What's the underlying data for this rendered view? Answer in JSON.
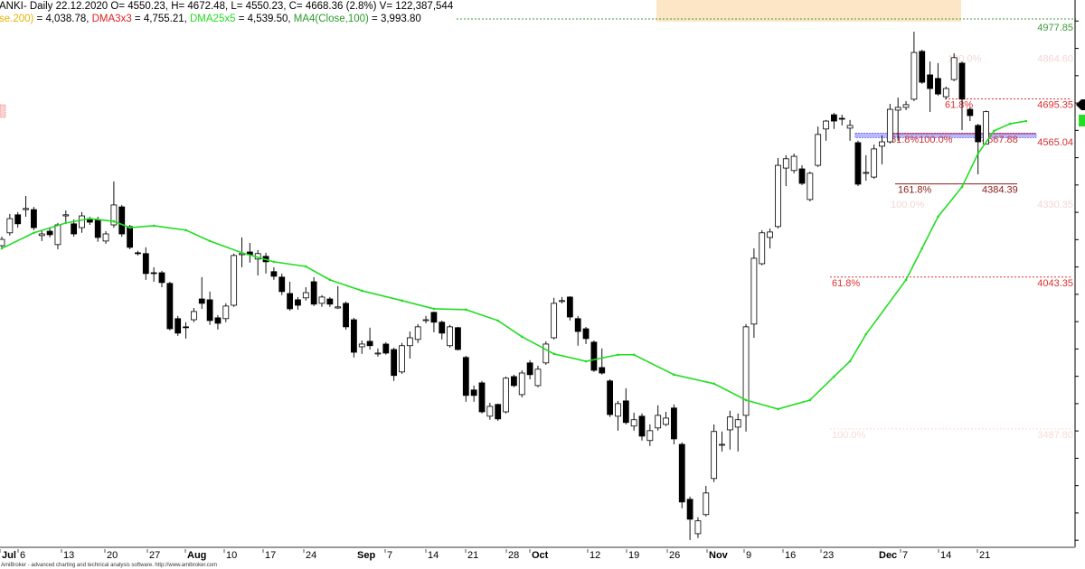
{
  "header": {
    "line1": "ANKI- Daily 22.12.2020 O= 4550.23, H= 4672.48, L= 4550.23, C= 4668.36 (2.8%) V= 122,387,544",
    "ind1_name": "se.200)",
    "ind1_value": " = 4,038.78, ",
    "ind2_name": "DMA3x3",
    "ind2_value": " = 4,755.21, ",
    "ind3_name": "DMA25x5",
    "ind3_value": " = 4,539.50, ",
    "ind4_name": "MA4(Close,100)",
    "ind4_value": " = 3,993.80",
    "colors": {
      "ind1": "#e8b400",
      "ind2": "#e02020",
      "ind3": "#22dd22",
      "ind4": "#2a9a2a"
    }
  },
  "footer": "AmiBroker - advanced charting and technical analysis software. http://www.amibroker.com",
  "chart_data": {
    "type": "candlestick",
    "period": "Daily",
    "last_date": "22.12.2020",
    "y_range": [
      3094,
      5077
    ],
    "grid": false,
    "colors": {
      "up_fill": "#ffffff",
      "down_fill": "#000000",
      "outline": "#000000",
      "ma_line": "#22dd22",
      "highlight_zone": "#fde6c6"
    },
    "x_ticks": [
      {
        "label": "Jul",
        "bold": true
      },
      {
        "label": "6",
        "bold": false
      },
      {
        "label": "13",
        "bold": false
      },
      {
        "label": "20",
        "bold": false
      },
      {
        "label": "27",
        "bold": false
      },
      {
        "label": "Aug",
        "bold": true
      },
      {
        "label": "10",
        "bold": false
      },
      {
        "label": "17",
        "bold": false
      },
      {
        "label": "24",
        "bold": false
      },
      {
        "label": "Sep",
        "bold": true
      },
      {
        "label": "7",
        "bold": false
      },
      {
        "label": "14",
        "bold": false
      },
      {
        "label": "21",
        "bold": false
      },
      {
        "label": "28",
        "bold": false
      },
      {
        "label": "Oct",
        "bold": true
      },
      {
        "label": "12",
        "bold": false
      },
      {
        "label": "19",
        "bold": false
      },
      {
        "label": "26",
        "bold": false
      },
      {
        "label": "Nov",
        "bold": true
      },
      {
        "label": "9",
        "bold": false
      },
      {
        "label": "16",
        "bold": false
      },
      {
        "label": "23",
        "bold": false
      },
      {
        "label": "Dec",
        "bold": true
      },
      {
        "label": "7",
        "bold": false
      },
      {
        "label": "14",
        "bold": false
      },
      {
        "label": "21",
        "bold": false
      }
    ],
    "candles_ohlc": [
      [
        4178,
        4211,
        4168,
        4201
      ],
      [
        4225,
        4294,
        4215,
        4277
      ],
      [
        4291,
        4301,
        4244,
        4258
      ],
      [
        4310,
        4360,
        4284,
        4314
      ],
      [
        4310,
        4320,
        4235,
        4244
      ],
      [
        4215,
        4235,
        4195,
        4221
      ],
      [
        4231,
        4241,
        4208,
        4218
      ],
      [
        4182,
        4261,
        4165,
        4254
      ],
      [
        4287,
        4307,
        4261,
        4291
      ],
      [
        4258,
        4274,
        4211,
        4221
      ],
      [
        4244,
        4301,
        4225,
        4287
      ],
      [
        4277,
        4284,
        4254,
        4264
      ],
      [
        4274,
        4284,
        4192,
        4208
      ],
      [
        4195,
        4231,
        4185,
        4221
      ],
      [
        4254,
        4413,
        4244,
        4327
      ],
      [
        4320,
        4327,
        4211,
        4221
      ],
      [
        4248,
        4254,
        4165,
        4172
      ],
      [
        4152,
        4159,
        4142,
        4149
      ],
      [
        4149,
        4172,
        4053,
        4076
      ],
      [
        4079,
        4099,
        4046,
        4076
      ],
      [
        4079,
        4086,
        4026,
        4043
      ],
      [
        4040,
        4046,
        3868,
        3874
      ],
      [
        3911,
        3921,
        3848,
        3858
      ],
      [
        3881,
        3898,
        3838,
        3878
      ],
      [
        3907,
        3950,
        3898,
        3937
      ],
      [
        3983,
        4063,
        3947,
        3967
      ],
      [
        3980,
        4010,
        3888,
        3904
      ],
      [
        3914,
        3924,
        3871,
        3894
      ],
      [
        3911,
        3967,
        3898,
        3957
      ],
      [
        3960,
        4149,
        3954,
        4142
      ],
      [
        4145,
        4208,
        4099,
        4149
      ],
      [
        4155,
        4188,
        4116,
        4145
      ],
      [
        4129,
        4162,
        4069,
        4149
      ],
      [
        4139,
        4152,
        4076,
        4119
      ],
      [
        4083,
        4099,
        4053,
        4066
      ],
      [
        4063,
        4076,
        3997,
        4010
      ],
      [
        4003,
        4046,
        3940,
        3947
      ],
      [
        3980,
        3990,
        3944,
        3960
      ],
      [
        3987,
        4026,
        3977,
        4006
      ],
      [
        4046,
        4063,
        3957,
        3964
      ],
      [
        3967,
        3997,
        3954,
        3990
      ],
      [
        3983,
        3990,
        3954,
        3964
      ],
      [
        3950,
        4030,
        3947,
        3954
      ],
      [
        3967,
        3974,
        3871,
        3881
      ],
      [
        3907,
        3914,
        3769,
        3788
      ],
      [
        3808,
        3831,
        3782,
        3818
      ],
      [
        3828,
        3878,
        3798,
        3812
      ],
      [
        3782,
        3802,
        3772,
        3785
      ],
      [
        3818,
        3825,
        3779,
        3785
      ],
      [
        3798,
        3805,
        3683,
        3703
      ],
      [
        3716,
        3822,
        3709,
        3812
      ],
      [
        3812,
        3864,
        3765,
        3841
      ],
      [
        3835,
        3891,
        3822,
        3881
      ],
      [
        3904,
        3921,
        3894,
        3907
      ],
      [
        3934,
        3937,
        3861,
        3898
      ],
      [
        3898,
        3904,
        3835,
        3858
      ],
      [
        3812,
        3888,
        3805,
        3881
      ],
      [
        3878,
        3881,
        3795,
        3798
      ],
      [
        3769,
        3775,
        3607,
        3630
      ],
      [
        3650,
        3666,
        3607,
        3630
      ],
      [
        3676,
        3683,
        3564,
        3570
      ],
      [
        3554,
        3603,
        3541,
        3590
      ],
      [
        3597,
        3600,
        3537,
        3544
      ],
      [
        3570,
        3699,
        3564,
        3693
      ],
      [
        3699,
        3706,
        3660,
        3666
      ],
      [
        3633,
        3722,
        3623,
        3712
      ],
      [
        3749,
        3759,
        3689,
        3706
      ],
      [
        3666,
        3739,
        3660,
        3726
      ],
      [
        3749,
        3828,
        3742,
        3818
      ],
      [
        3841,
        3987,
        3835,
        3967
      ],
      [
        3974,
        3990,
        3967,
        3977
      ],
      [
        3990,
        3993,
        3904,
        3917
      ],
      [
        3911,
        3921,
        3812,
        3864
      ],
      [
        3874,
        3881,
        3818,
        3838
      ],
      [
        3825,
        3831,
        3716,
        3722
      ],
      [
        3732,
        3802,
        3706,
        3712
      ],
      [
        3683,
        3689,
        3551,
        3560
      ],
      [
        3554,
        3610,
        3501,
        3600
      ],
      [
        3610,
        3656,
        3524,
        3531
      ],
      [
        3518,
        3567,
        3501,
        3541
      ],
      [
        3554,
        3564,
        3465,
        3481
      ],
      [
        3465,
        3524,
        3445,
        3501
      ],
      [
        3511,
        3594,
        3501,
        3557
      ],
      [
        3524,
        3570,
        3518,
        3547
      ],
      [
        3584,
        3597,
        3451,
        3471
      ],
      [
        3451,
        3458,
        3217,
        3240
      ],
      [
        3250,
        3260,
        3101,
        3177
      ],
      [
        3124,
        3184,
        3108,
        3171
      ],
      [
        3194,
        3299,
        3187,
        3273
      ],
      [
        3326,
        3524,
        3313,
        3498
      ],
      [
        3448,
        3498,
        3425,
        3451
      ],
      [
        3504,
        3574,
        3432,
        3551
      ],
      [
        3514,
        3564,
        3425,
        3541
      ],
      [
        3557,
        3891,
        3498,
        3881
      ],
      [
        3891,
        4168,
        3841,
        4132
      ],
      [
        4112,
        4235,
        4106,
        4225
      ],
      [
        4208,
        4241,
        4168,
        4228
      ],
      [
        4248,
        4499,
        4241,
        4472
      ],
      [
        4462,
        4509,
        4396,
        4496
      ],
      [
        4453,
        4515,
        4443,
        4505
      ],
      [
        4459,
        4472,
        4400,
        4406
      ],
      [
        4347,
        4449,
        4340,
        4443
      ],
      [
        4472,
        4614,
        4466,
        4585
      ],
      [
        4605,
        4638,
        4562,
        4634
      ],
      [
        4657,
        4664,
        4605,
        4634
      ],
      [
        4644,
        4657,
        4618,
        4641
      ],
      [
        4608,
        4638,
        4562,
        4618
      ],
      [
        4555,
        4562,
        4396,
        4403
      ],
      [
        4443,
        4509,
        4416,
        4446
      ],
      [
        4429,
        4548,
        4423,
        4532
      ],
      [
        4542,
        4581,
        4476,
        4558
      ],
      [
        4558,
        4697,
        4552,
        4677
      ],
      [
        4674,
        4720,
        4562,
        4684
      ],
      [
        4684,
        4707,
        4674,
        4694
      ],
      [
        4714,
        4961,
        4707,
        4885
      ],
      [
        4889,
        4895,
        4770,
        4776
      ],
      [
        4803,
        4852,
        4667,
        4753
      ],
      [
        4790,
        4846,
        4727,
        4733
      ],
      [
        4723,
        4760,
        4714,
        4753
      ],
      [
        4786,
        4882,
        4780,
        4866
      ],
      [
        4846,
        4852,
        4601,
        4714
      ],
      [
        4677,
        4684,
        4634,
        4654
      ],
      [
        4618,
        4624,
        4439,
        4558
      ],
      [
        4550.23,
        4672.48,
        4550.23,
        4668.36
      ]
    ],
    "ma_series": {
      "name": "DMA25x5",
      "points_bar_value": [
        [
          0,
          4168
        ],
        [
          4,
          4225
        ],
        [
          8,
          4261
        ],
        [
          11,
          4277
        ],
        [
          14,
          4267
        ],
        [
          16,
          4244
        ],
        [
          19,
          4251
        ],
        [
          23,
          4235
        ],
        [
          26,
          4195
        ],
        [
          30,
          4152
        ],
        [
          34,
          4119
        ],
        [
          38,
          4102
        ],
        [
          41,
          4053
        ],
        [
          45,
          4013
        ],
        [
          50,
          3977
        ],
        [
          54,
          3947
        ],
        [
          58,
          3944
        ],
        [
          62,
          3904
        ],
        [
          65,
          3845
        ],
        [
          69,
          3782
        ],
        [
          73,
          3755
        ],
        [
          77,
          3779
        ],
        [
          79,
          3779
        ],
        [
          84,
          3706
        ],
        [
          89,
          3673
        ],
        [
          93,
          3613
        ],
        [
          97,
          3580
        ],
        [
          101,
          3613
        ],
        [
          104,
          3699
        ],
        [
          106,
          3755
        ],
        [
          108,
          3854
        ],
        [
          113,
          4053
        ],
        [
          115,
          4168
        ],
        [
          117,
          4284
        ],
        [
          120,
          4393
        ],
        [
          122,
          4515
        ],
        [
          124,
          4598
        ],
        [
          126,
          4624
        ],
        [
          128,
          4634
        ]
      ]
    },
    "levels": [
      {
        "price": 4977.85,
        "left_text": "",
        "right_text": "4977.85",
        "color": "#3f9a3f",
        "line": "dashed"
      },
      {
        "price": 4864.6,
        "left_text": "100.0%",
        "right_text": "4864.60",
        "color": "#f4d6d6",
        "line": "none"
      },
      {
        "price": 4695.35,
        "left_text": "61.8%",
        "right_text": "4695.35",
        "color": "#e03030",
        "line": "dashed"
      },
      {
        "price": 4567.88,
        "left_text": "61.8%100.0%",
        "mid_text": "4567.88",
        "right_text": "4565.04",
        "color": "#d03030",
        "line": "solid"
      },
      {
        "price": 4384.39,
        "left_text": "161.8%",
        "mid_text": "4384.39",
        "right_text": "",
        "color": "#8b1a1a",
        "line": "solid"
      },
      {
        "price": 4330.35,
        "left_text": "100.0%",
        "right_text": "4330.35",
        "color": "#f4d6d6",
        "line": "none"
      },
      {
        "price": 4043.35,
        "left_text": "61.8%",
        "right_text": "4043.35",
        "color": "#e03030",
        "line": "dashed"
      },
      {
        "price": 3487.8,
        "left_text": "100.0%",
        "right_text": "3487.80",
        "color": "#f6dcd6",
        "line": "dashed"
      }
    ],
    "support_band_price": 4580
  }
}
